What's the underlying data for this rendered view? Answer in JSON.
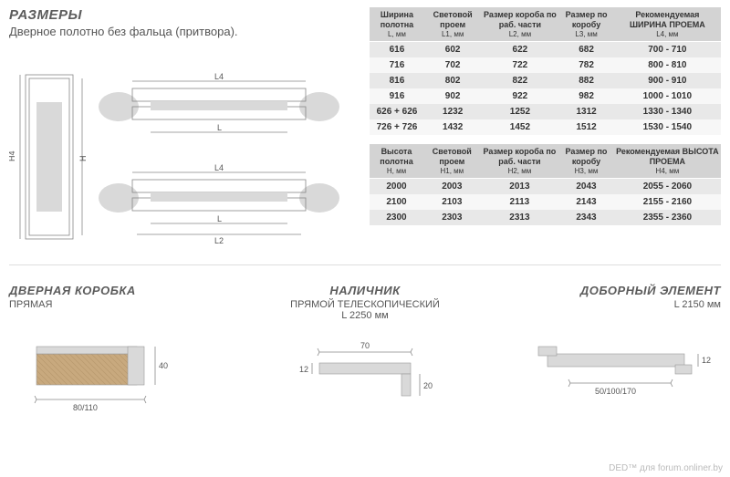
{
  "sizes": {
    "title": "РАЗМЕРЫ",
    "subtitle": "Дверное полотно без фальца (притвора)."
  },
  "table1": {
    "headers": [
      {
        "l1": "Ширина полотна",
        "l2": "L, мм"
      },
      {
        "l1": "Световой проем",
        "l2": "L1, мм"
      },
      {
        "l1": "Размер короба по раб. части",
        "l2": "L2, мм"
      },
      {
        "l1": "Размер по коробу",
        "l2": "L3, мм"
      },
      {
        "l1": "Рекомендуемая ШИРИНА ПРОЕМА",
        "l2": "L4, мм"
      }
    ],
    "rows": [
      [
        "616",
        "602",
        "622",
        "682",
        "700 - 710"
      ],
      [
        "716",
        "702",
        "722",
        "782",
        "800 - 810"
      ],
      [
        "816",
        "802",
        "822",
        "882",
        "900 - 910"
      ],
      [
        "916",
        "902",
        "922",
        "982",
        "1000 - 1010"
      ],
      [
        "626 + 626",
        "1232",
        "1252",
        "1312",
        "1330 - 1340"
      ],
      [
        "726 + 726",
        "1432",
        "1452",
        "1512",
        "1530 - 1540"
      ]
    ]
  },
  "table2": {
    "headers": [
      {
        "l1": "Высота полотна",
        "l2": "H, мм"
      },
      {
        "l1": "Световой проем",
        "l2": "H1, мм"
      },
      {
        "l1": "Размер короба по раб. части",
        "l2": "H2, мм"
      },
      {
        "l1": "Размер по коробу",
        "l2": "H3, мм"
      },
      {
        "l1": "Рекомендуемая ВЫСОТА ПРОЕМА",
        "l2": "H4, мм"
      }
    ],
    "rows": [
      [
        "2000",
        "2003",
        "2013",
        "2043",
        "2055 - 2060"
      ],
      [
        "2100",
        "2103",
        "2113",
        "2143",
        "2155 - 2160"
      ],
      [
        "2300",
        "2303",
        "2313",
        "2343",
        "2355 - 2360"
      ]
    ]
  },
  "frame": {
    "title": "ДВЕРНАЯ КОРОБКА",
    "sub": "ПРЯМАЯ",
    "w": "80/110",
    "h": "40"
  },
  "casing": {
    "title": "НАЛИЧНИК",
    "sub": "ПРЯМОЙ ТЕЛЕСКОПИЧЕСКИЙ",
    "len": "L 2250 мм",
    "w": "70",
    "h1": "12",
    "h2": "20"
  },
  "ext": {
    "title": "ДОБОРНЫЙ ЭЛЕМЕНТ",
    "len": "L 2150 мм",
    "w": "50/100/170",
    "h": "12"
  },
  "watermark": "DED™ для forum.onliner.by",
  "colors": {
    "header_bg": "#d3d3d3",
    "row_odd": "#e8e8e8",
    "row_even": "#f7f7f7",
    "wood": "#c8a97e",
    "grey": "#d9d9d9"
  }
}
